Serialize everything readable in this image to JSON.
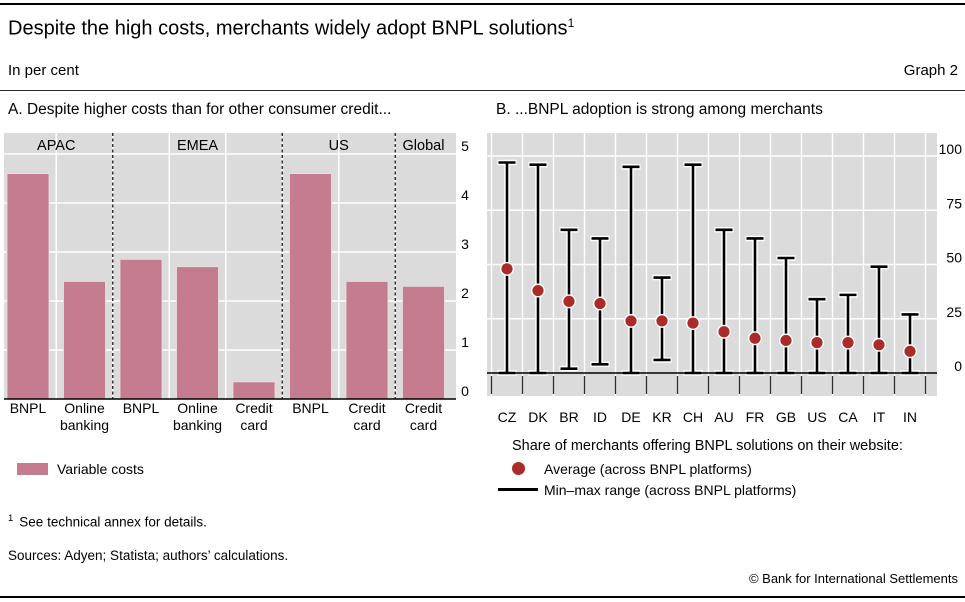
{
  "header": {
    "title": "Despite the high costs, merchants widely adopt BNPL solutions",
    "title_footnote_marker": "1",
    "unit_label": "In per cent",
    "graph_number": "Graph 2"
  },
  "chart_data": [
    {
      "type": "bar",
      "panel": "A",
      "title": "A. Despite higher costs than for other consumer credit...",
      "unit": "In per cent",
      "regions": [
        {
          "label": "APAC",
          "bars": [
            0,
            1
          ]
        },
        {
          "label": "EMEA",
          "bars": [
            2,
            3,
            4
          ]
        },
        {
          "label": "US",
          "bars": [
            5,
            6
          ]
        },
        {
          "label": "Global",
          "bars": [
            7
          ]
        }
      ],
      "categories": [
        "BNPL",
        "Online\nbanking",
        "BNPL",
        "Online\nbanking",
        "Credit\ncard",
        "BNPL",
        "Credit\ncard",
        "Credit\ncard"
      ],
      "values": [
        4.6,
        2.4,
        2.85,
        2.7,
        0.35,
        4.6,
        2.4,
        2.3
      ],
      "ylim": [
        0,
        5
      ],
      "yticks": [
        0,
        1,
        2,
        3,
        4,
        5
      ],
      "grid": true,
      "legend": [
        {
          "label": "Variable costs",
          "color": "#c67c8f"
        }
      ],
      "bar_color": "#c67c8f",
      "plot_bg": "#dbdbdb"
    },
    {
      "type": "scatter",
      "panel": "B",
      "title": "B. ...BNPL adoption is strong among merchants",
      "unit": "In per cent",
      "categories": [
        "CZ",
        "DK",
        "BR",
        "ID",
        "DE",
        "KR",
        "CH",
        "AU",
        "FR",
        "GB",
        "US",
        "CA",
        "IT",
        "IN"
      ],
      "series": [
        {
          "name": "Average (across BNPL platforms)",
          "values": [
            48,
            38,
            33,
            32,
            24,
            24,
            23,
            19,
            16,
            15,
            14,
            14,
            13,
            10
          ]
        },
        {
          "name": "Min (across BNPL platforms)",
          "values": [
            0,
            0,
            2,
            4,
            0,
            6,
            0,
            0,
            0,
            0,
            0,
            0,
            0,
            0
          ]
        },
        {
          "name": "Max (across BNPL platforms)",
          "values": [
            97,
            96,
            66,
            62,
            95,
            44,
            96,
            66,
            62,
            53,
            34,
            36,
            49,
            27
          ]
        }
      ],
      "ylim": [
        0,
        100
      ],
      "yticks": [
        0,
        25,
        50,
        75,
        100
      ],
      "grid": true,
      "legend_heading": "Share of merchants offering BNPL solutions on their website:",
      "legend": [
        {
          "label": "Average (across BNPL platforms)",
          "marker": "dot",
          "color": "#ab2a2a"
        },
        {
          "label": "Min–max range (across BNPL platforms)",
          "marker": "line",
          "color": "#000000"
        }
      ],
      "dot_color": "#ab2a2a",
      "range_color": "#000000",
      "plot_bg": "#dbdbdb"
    }
  ],
  "footnotes": {
    "marker": "1",
    "text": "See technical annex for details.",
    "sources": "Sources: Adyen; Statista; authors’ calculations.",
    "copyright": "© Bank for International Settlements"
  }
}
